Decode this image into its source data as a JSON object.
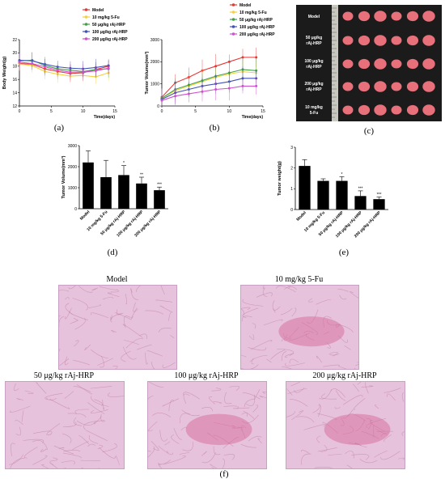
{
  "colors": {
    "model": "#e53935",
    "fu": "#f4d03f",
    "hrp50": "#43a047",
    "hrp100": "#3f51b5",
    "hrp200": "#d050d0",
    "bar": "#000000",
    "tissue_bg": "#e6c2dc",
    "tissue_dark": "#b2698f"
  },
  "legend_labels": [
    "Model",
    "10 mg/kg 5-Fu",
    "50 μg/kg rAj-HRP",
    "100 μg/kg rAj-HRP",
    "200 μg/kg rAj-HRP"
  ],
  "captions": {
    "a": "(a)",
    "b": "(b)",
    "c": "(c)",
    "d": "(d)",
    "e": "(e)",
    "f": "(f)"
  },
  "photo_labels": [
    "Model",
    "50 μg/kg rAj-HRP",
    "100 μg/kg rAj-HRP",
    "200 μg/kg rAj-HRP",
    "10 mg/kg 5-Fu"
  ],
  "histology_labels": [
    "Model",
    "10 mg/kg 5-Fu",
    "50 μg/kg rAj-HRP",
    "100 μg/kg rAj-HRP",
    "200 μg/kg rAj-HRP"
  ],
  "chart_data": [
    {
      "id": "a",
      "type": "line",
      "xlabel": "Time(days)",
      "ylabel": "Body Weight(g)",
      "xlim": [
        0,
        15
      ],
      "ylim": [
        12,
        22
      ],
      "xticks": [
        "0",
        "5",
        "10",
        "15"
      ],
      "yticks": [
        "12",
        "14",
        "16",
        "18",
        "20",
        "22"
      ],
      "x": [
        0,
        2,
        4,
        6,
        8,
        10,
        12,
        14
      ],
      "series": [
        {
          "name": "Model",
          "values": [
            18.4,
            18.3,
            17.6,
            17.2,
            16.9,
            17.0,
            17.5,
            18.0
          ]
        },
        {
          "name": "10 mg/kg 5-Fu",
          "values": [
            18.3,
            18.1,
            17.2,
            16.8,
            16.5,
            16.6,
            16.4,
            17.0
          ]
        },
        {
          "name": "50 μg/kg rAj-HRP",
          "values": [
            18.8,
            18.9,
            18.1,
            17.6,
            17.4,
            17.2,
            17.5,
            17.6
          ]
        },
        {
          "name": "100 μg/kg rAj-HRP",
          "values": [
            18.9,
            18.8,
            18.3,
            17.9,
            17.7,
            17.6,
            17.8,
            18.1
          ]
        },
        {
          "name": "200 μg/kg rAj-HRP",
          "values": [
            18.6,
            18.4,
            17.9,
            17.4,
            17.1,
            17.1,
            17.3,
            17.7
          ]
        }
      ],
      "error": 1.3
    },
    {
      "id": "b",
      "type": "line",
      "xlabel": "Time(days)",
      "ylabel": "Tumor Volume(mm³)",
      "xlim": [
        0,
        15
      ],
      "ylim": [
        0,
        3000
      ],
      "xticks": [
        "0",
        "5",
        "10",
        "15"
      ],
      "yticks": [
        "0",
        "1000",
        "2000",
        "3000"
      ],
      "x": [
        0,
        2,
        4,
        6,
        8,
        10,
        12,
        14
      ],
      "series": [
        {
          "name": "Model",
          "values": [
            400,
            1050,
            1300,
            1600,
            1800,
            2000,
            2200,
            2200
          ]
        },
        {
          "name": "10 mg/kg 5-Fu",
          "values": [
            350,
            700,
            900,
            1100,
            1300,
            1450,
            1550,
            1500
          ]
        },
        {
          "name": "50 μg/kg rAj-HRP",
          "values": [
            350,
            750,
            950,
            1150,
            1350,
            1500,
            1650,
            1600
          ]
        },
        {
          "name": "100 μg/kg rAj-HRP",
          "values": [
            300,
            600,
            750,
            900,
            1000,
            1100,
            1250,
            1250
          ]
        },
        {
          "name": "200 μg/kg rAj-HRP",
          "values": [
            250,
            450,
            550,
            650,
            750,
            800,
            900,
            900
          ]
        }
      ],
      "error": 550
    },
    {
      "id": "d",
      "type": "bar",
      "ylabel": "Tumor Volume(mm³)",
      "ylim": [
        0,
        3000
      ],
      "yticks": [
        "0",
        "1000",
        "2000",
        "3000"
      ],
      "categories": [
        "Model",
        "10 mg/kg 5-Fu",
        "50 μg/kg rAj-HRP",
        "100 μg/kg rAj-HRP",
        "200 μg/kg rAj-HRP"
      ],
      "values": [
        2200,
        1500,
        1600,
        1200,
        880
      ],
      "errors": [
        550,
        800,
        450,
        300,
        150
      ],
      "significance": [
        "",
        "",
        "*",
        "**",
        "***"
      ]
    },
    {
      "id": "e",
      "type": "bar",
      "ylabel": "Tumor weight(g)",
      "ylim": [
        0,
        3
      ],
      "yticks": [
        "0",
        "1",
        "2",
        "3"
      ],
      "categories": [
        "Model",
        "10 mg/kg 5-Fu",
        "50 μg/kg rAj-HRP",
        "100 μg/kg rAj-HRP",
        "200 μg/kg rAj-HRP"
      ],
      "values": [
        2.1,
        1.38,
        1.38,
        0.65,
        0.5
      ],
      "errors": [
        0.3,
        0.1,
        0.2,
        0.25,
        0.1
      ],
      "significance": [
        "",
        "",
        "*",
        "***",
        "***"
      ]
    }
  ]
}
